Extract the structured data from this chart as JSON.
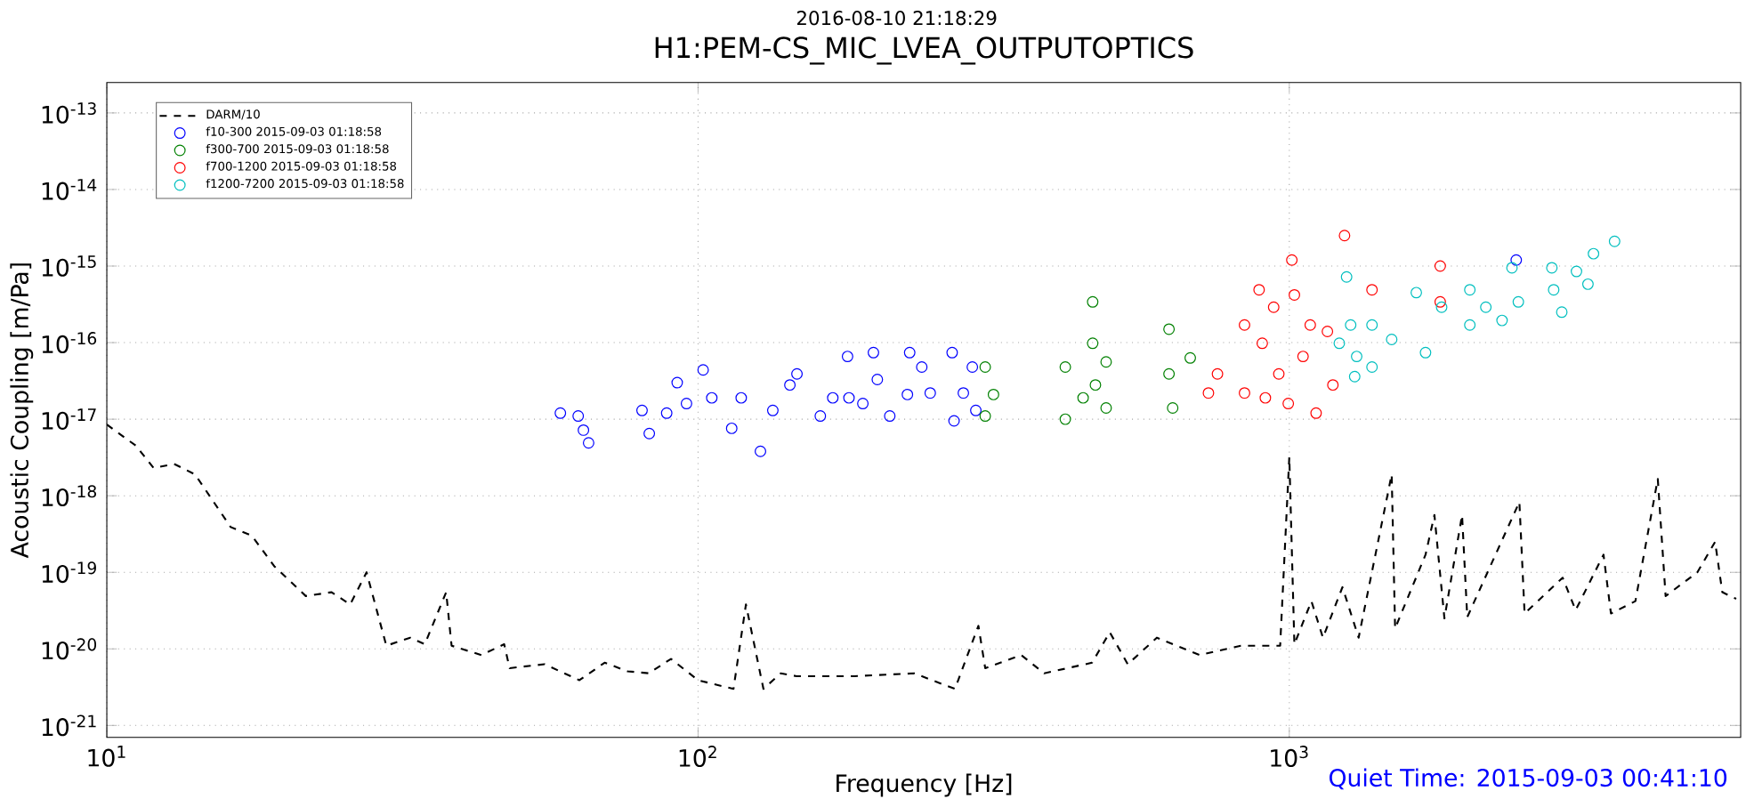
{
  "chart_data": {
    "type": "scatter",
    "title": "H1:PEM-CS_MIC_LVEA_OUTPUTOPTICS",
    "xlabel": "Frequency [Hz]",
    "ylabel": "Acoustic Coupling [m/Pa]",
    "annotations": [
      "2016-08-10 21:18:29",
      "Quiet Time: 2015-09-03 00:41:10"
    ],
    "log": "xy",
    "grid": true,
    "legend": "top left",
    "xlim": [
      10,
      5800
    ],
    "ylim": [
      7e-22,
      2.5e-13
    ],
    "xticks": [
      {
        "value": 10,
        "label": "10$^{1}$"
      },
      {
        "value": 100,
        "label": "10$^{2}$"
      },
      {
        "value": 1000,
        "label": "10$^{3}$"
      }
    ],
    "yticks": [
      {
        "value": 1e-21,
        "label": "10$^{-21}$"
      },
      {
        "value": 1e-20,
        "label": "10$^{-20}$"
      },
      {
        "value": 1e-19,
        "label": "10$^{-19}$"
      },
      {
        "value": 1e-18,
        "label": "10$^{-18}$"
      },
      {
        "value": 1e-17,
        "label": "10$^{-17}$"
      },
      {
        "value": 1e-16,
        "label": "10$^{-16}$"
      },
      {
        "value": 1e-15,
        "label": "10$^{-15}$"
      },
      {
        "value": 1e-14,
        "label": "10$^{-14}$"
      },
      {
        "value": 1e-13,
        "label": "10$^{-13}$"
      }
    ],
    "series": [
      {
        "name": "DARM/10",
        "type": "line",
        "line_style": "dashed",
        "marker": "none",
        "color": "#000000",
        "x": [
          10,
          11.2,
          12,
          13,
          14.1,
          16.2,
          17.6,
          19.2,
          21.7,
          24,
          25.8,
          27.5,
          29.7,
          32.6,
          34.5,
          37.5,
          38.3,
          43,
          47,
          48,
          55,
          63,
          69.5,
          76,
          82.5,
          90,
          100,
          114.8,
          120.5,
          129,
          138,
          146.7,
          184,
          232,
          272,
          298,
          306,
          352,
          385,
          464,
          497,
          533,
          597,
          705,
          828,
          965,
          1000,
          1020,
          1090,
          1140,
          1230,
          1310,
          1490,
          1510,
          1700,
          1760,
          1830,
          1960,
          2000,
          2450,
          2500,
          2900,
          3050,
          3400,
          3500,
          3850,
          4200,
          4330,
          4900,
          5250,
          5400,
          5700
        ],
        "values": [
          8.5e-18,
          4.5e-18,
          2.3e-18,
          2.6e-18,
          1.9e-18,
          3.9e-19,
          3e-19,
          1.2e-19,
          4.9e-20,
          5.5e-20,
          3.8e-20,
          1e-19,
          1.1e-20,
          1.4e-20,
          1.15e-20,
          5.5e-20,
          1.1e-20,
          8.3e-21,
          1.15e-20,
          5.6e-21,
          6.3e-21,
          3.9e-21,
          6.6e-21,
          5.1e-21,
          4.8e-21,
          7.4e-21,
          3.9e-21,
          3e-21,
          3.8e-20,
          3e-21,
          4.8e-21,
          4.4e-21,
          4.4e-21,
          4.8e-21,
          3e-21,
          2e-20,
          5.6e-21,
          8.3e-21,
          4.8e-21,
          6.6e-21,
          1.65e-20,
          6.3e-21,
          1.4e-20,
          8.3e-21,
          1.1e-20,
          1.1e-20,
          3.2e-18,
          1.15e-20,
          4.2e-20,
          1.4e-20,
          6.4e-20,
          1.4e-20,
          1.9e-18,
          1.85e-20,
          1.7e-19,
          5.6e-19,
          2.5e-20,
          5.6e-19,
          2.6e-20,
          8.3e-19,
          2.9e-20,
          8.5e-20,
          3.2e-20,
          1.7e-19,
          2.9e-20,
          4.2e-20,
          1.66e-18,
          4.9e-20,
          1e-19,
          2.5e-19,
          5.5e-20,
          4.5e-20
        ]
      },
      {
        "name": "f10-300   2015-09-03 01:18:58",
        "marker": "circle",
        "color": "#0000ff",
        "x": [
          58.5,
          62.7,
          64,
          65.3,
          80.4,
          82.7,
          88.5,
          92.2,
          95.6,
          102,
          105.5,
          114,
          118.3,
          127.5,
          133.8,
          143,
          147,
          161,
          169,
          179,
          180,
          190,
          198,
          201,
          211,
          226,
          228,
          239,
          247,
          269,
          271,
          281,
          291,
          295,
          2420
        ],
        "values": [
          1.2e-17,
          1.1e-17,
          7.2e-18,
          4.9e-18,
          1.3e-17,
          6.5e-18,
          1.2e-17,
          3e-17,
          1.6e-17,
          4.4e-17,
          1.9e-17,
          7.6e-18,
          1.9e-17,
          3.8e-18,
          1.3e-17,
          2.8e-17,
          3.9e-17,
          1.1e-17,
          1.9e-17,
          6.6e-17,
          1.9e-17,
          1.6e-17,
          7.4e-17,
          3.3e-17,
          1.1e-17,
          2.1e-17,
          7.4e-17,
          4.8e-17,
          2.2e-17,
          7.4e-17,
          9.5e-18,
          2.2e-17,
          4.8e-17,
          1.3e-17,
          1.2e-15
        ]
      },
      {
        "name": "f300-700   2015-09-03 01:18:58",
        "marker": "circle",
        "color": "#008000",
        "x": [
          306,
          306,
          316,
          418,
          418,
          448,
          465,
          465,
          470,
          490,
          490,
          626,
          626,
          635,
          680
        ],
        "values": [
          4.8e-17,
          1.1e-17,
          2.1e-17,
          4.8e-17,
          1e-17,
          1.9e-17,
          3.4e-16,
          9.8e-17,
          2.8e-17,
          5.6e-17,
          1.4e-17,
          1.5e-16,
          3.9e-17,
          1.4e-17,
          6.3e-17
        ]
      },
      {
        "name": "f700-1200   2015-09-03 01:18:58",
        "marker": "circle",
        "color": "#ff0000",
        "x": [
          730,
          756,
          840,
          840,
          889,
          900,
          911,
          941,
          960,
          996,
          1010,
          1020,
          1055,
          1085,
          1110,
          1160,
          1185,
          1240,
          1380,
          1800,
          1800
        ],
        "values": [
          2.2e-17,
          3.9e-17,
          1.7e-16,
          2.2e-17,
          4.9e-16,
          9.8e-17,
          1.9e-17,
          2.9e-16,
          3.9e-17,
          1.6e-17,
          1.2e-15,
          4.2e-16,
          6.6e-17,
          1.7e-16,
          1.2e-17,
          1.4e-16,
          2.8e-17,
          2.5e-15,
          4.9e-16,
          1e-15,
          3.4e-16
        ]
      },
      {
        "name": "f1200-7200   2015-09-03 01:18:58",
        "marker": "circle",
        "color": "#00bfbf",
        "x": [
          1215,
          1250,
          1270,
          1290,
          1300,
          1380,
          1380,
          1490,
          1640,
          1700,
          1810,
          2020,
          2020,
          2150,
          2290,
          2380,
          2440,
          2780,
          2800,
          2890,
          3060,
          3270,
          3200,
          3550
        ],
        "values": [
          9.8e-17,
          7.2e-16,
          1.7e-16,
          3.6e-17,
          6.6e-17,
          1.7e-16,
          4.8e-17,
          1.1e-16,
          4.5e-16,
          7.4e-17,
          2.9e-16,
          4.9e-16,
          1.7e-16,
          2.9e-16,
          1.95e-16,
          9.5e-16,
          3.4e-16,
          9.5e-16,
          4.9e-16,
          2.5e-16,
          8.5e-16,
          1.45e-15,
          5.8e-16,
          2.1e-15
        ]
      }
    ]
  }
}
